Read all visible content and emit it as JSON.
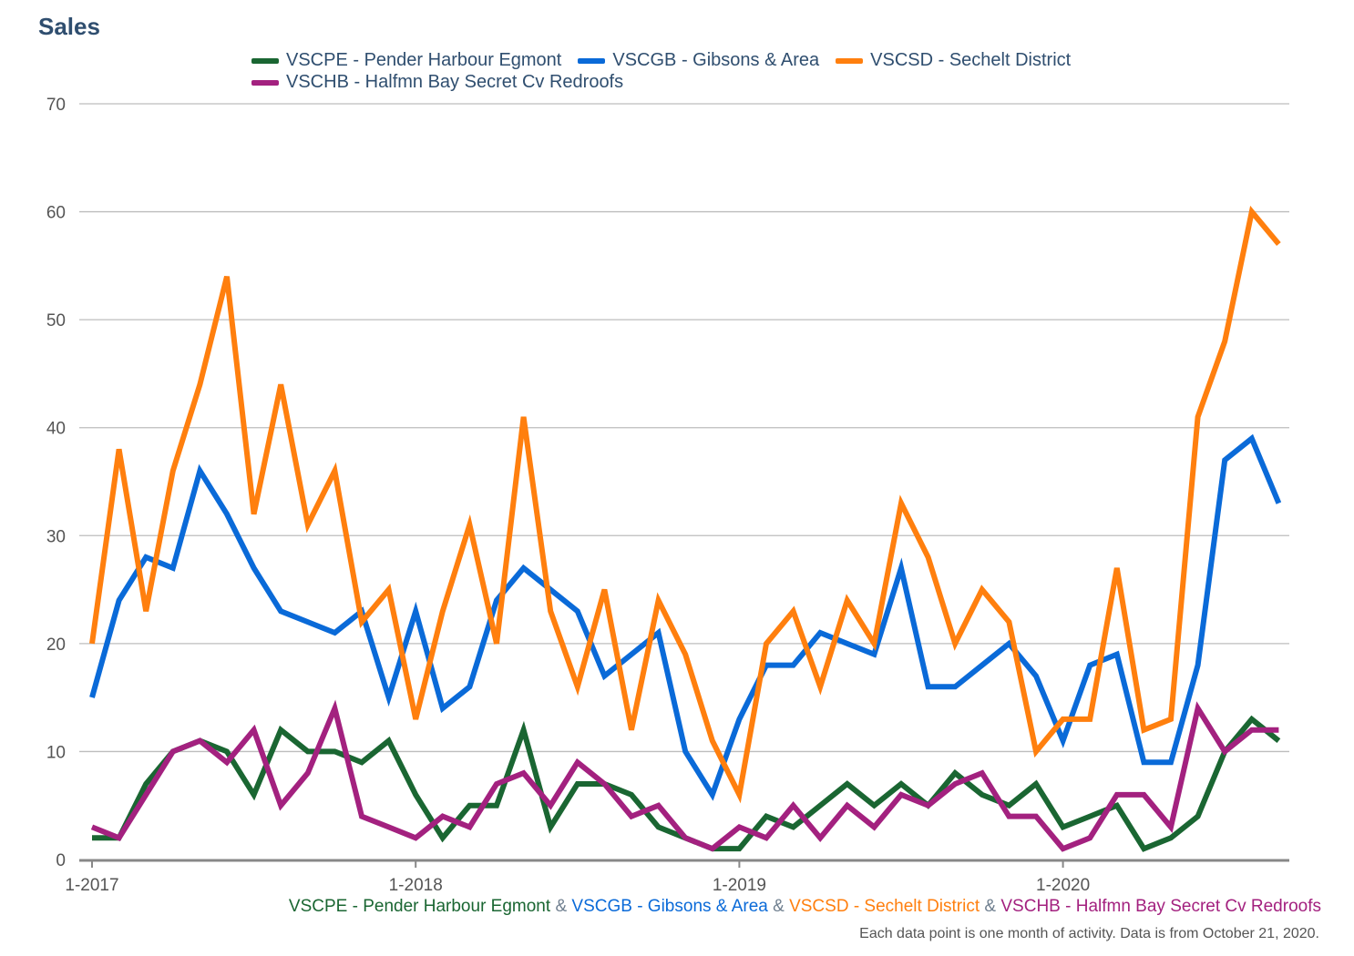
{
  "chart_data": {
    "type": "line",
    "title": "Sales",
    "x_start": "1-2017",
    "x_ticks": [
      "1-2017",
      "1-2018",
      "1-2019",
      "1-2020"
    ],
    "ylim": [
      0,
      70
    ],
    "y_ticks": [
      "0",
      "10",
      "20",
      "30",
      "40",
      "50",
      "60",
      "70"
    ],
    "grid": true,
    "legend_position": "top",
    "series": [
      {
        "name": "VSCPE - Pender Harbour Egmont",
        "color": "#1a6632",
        "values": [
          2,
          2,
          7,
          10,
          11,
          10,
          6,
          12,
          10,
          10,
          9,
          11,
          6,
          2,
          5,
          5,
          12,
          3,
          7,
          7,
          6,
          3,
          2,
          1,
          1,
          4,
          3,
          5,
          7,
          5,
          7,
          5,
          8,
          6,
          5,
          7,
          3,
          4,
          5,
          1,
          2,
          4,
          10,
          13,
          11
        ]
      },
      {
        "name": "VSCGB - Gibsons & Area",
        "color": "#0a6ad8",
        "values": [
          15,
          24,
          28,
          27,
          36,
          32,
          27,
          23,
          22,
          21,
          23,
          15,
          23,
          14,
          16,
          24,
          27,
          25,
          23,
          17,
          19,
          21,
          10,
          6,
          13,
          18,
          18,
          21,
          20,
          19,
          27,
          16,
          16,
          18,
          20,
          17,
          11,
          18,
          19,
          9,
          9,
          18,
          37,
          39,
          33
        ]
      },
      {
        "name": "VSCSD - Sechelt District",
        "color": "#ff7f0e",
        "values": [
          20,
          38,
          23,
          36,
          44,
          54,
          32,
          44,
          31,
          36,
          22,
          25,
          13,
          23,
          31,
          20,
          41,
          23,
          16,
          25,
          12,
          24,
          19,
          11,
          6,
          20,
          23,
          16,
          24,
          20,
          33,
          28,
          20,
          25,
          22,
          10,
          13,
          13,
          27,
          12,
          13,
          41,
          48,
          60,
          57
        ]
      },
      {
        "name": "VSCHB - Halfmn Bay Secret Cv Redroofs",
        "color": "#a3217f",
        "values": [
          3,
          2,
          6,
          10,
          11,
          9,
          12,
          5,
          8,
          14,
          4,
          3,
          2,
          4,
          3,
          7,
          8,
          5,
          9,
          7,
          4,
          5,
          2,
          1,
          3,
          2,
          5,
          2,
          5,
          3,
          6,
          5,
          7,
          8,
          4,
          4,
          1,
          2,
          6,
          6,
          3,
          14,
          10,
          12,
          12
        ]
      }
    ]
  },
  "bottom_series_line": {
    "separator": "&",
    "separator_color": "#6f7f8f"
  },
  "footnote": "Each data point is one month of activity. Data is from October 21, 2020."
}
